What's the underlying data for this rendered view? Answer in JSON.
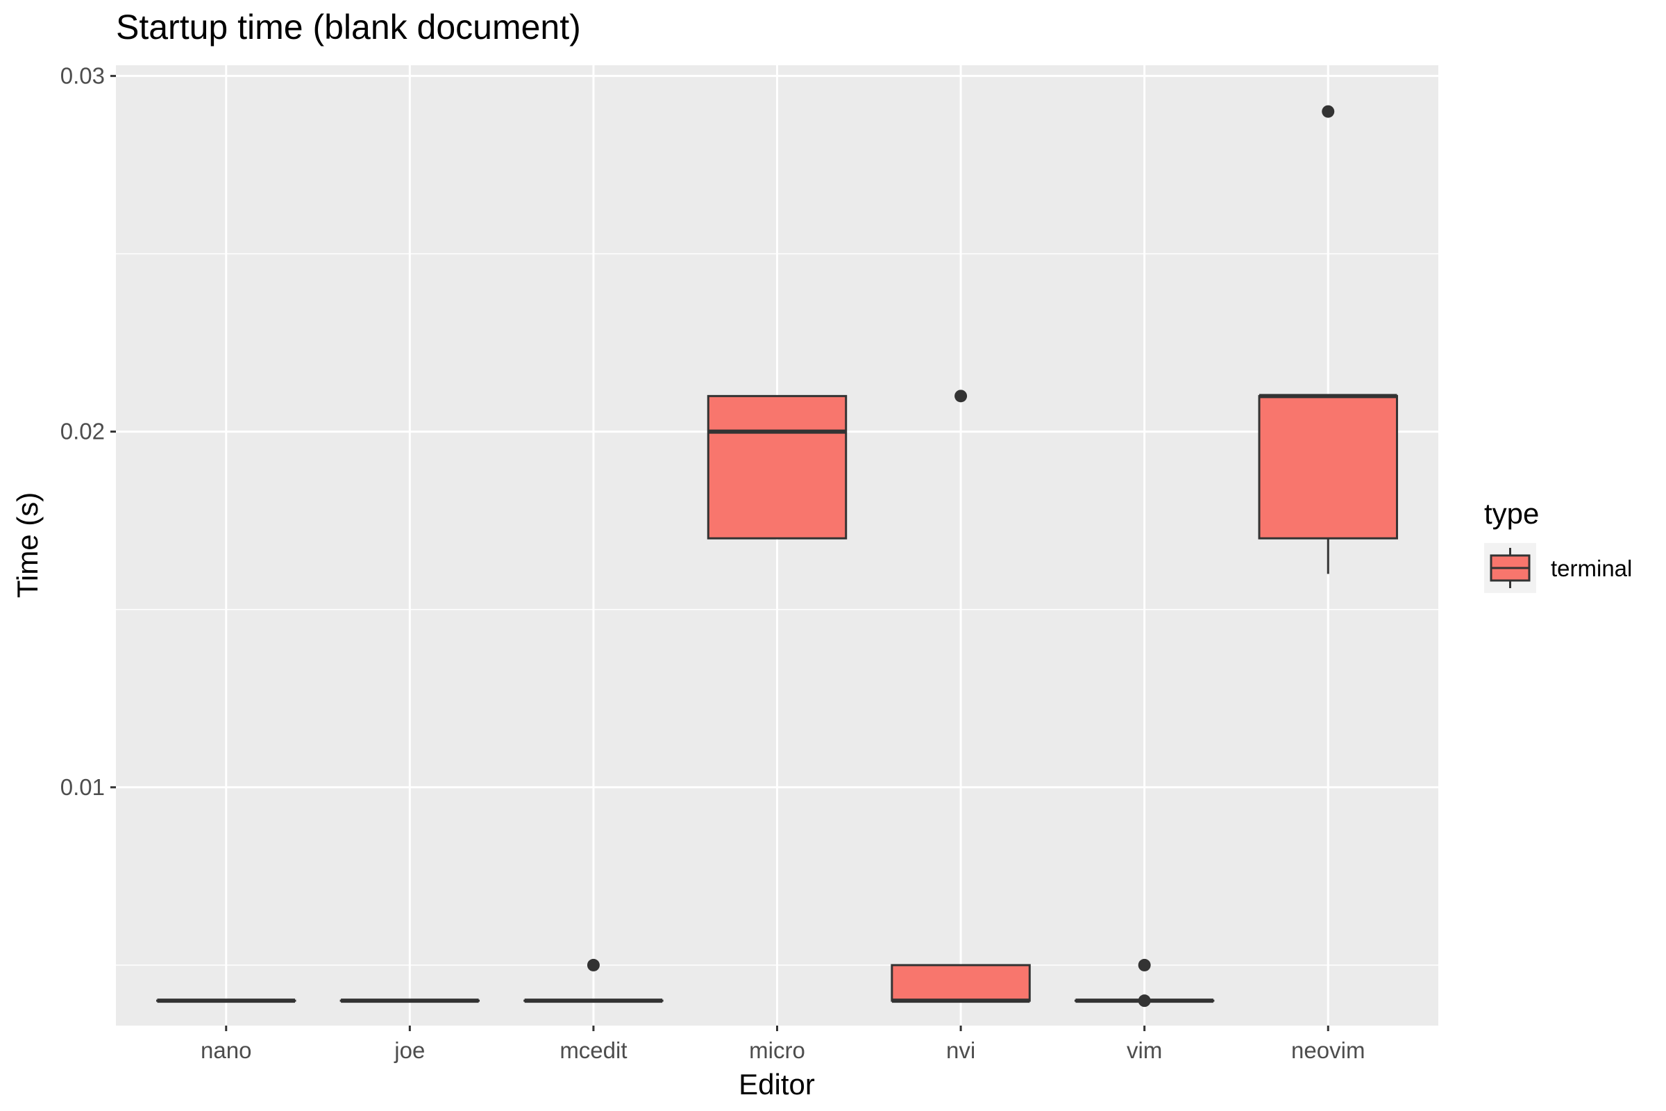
{
  "chart_data": {
    "type": "boxplot",
    "title": "Startup time (blank document)",
    "xlabel": "Editor",
    "ylabel": "Time (s)",
    "categories": [
      "nano",
      "joe",
      "mcedit",
      "micro",
      "nvi",
      "vim",
      "neovim"
    ],
    "ylim": [
      0.0033,
      0.0303
    ],
    "y_ticks": [
      0.01,
      0.02,
      0.03
    ],
    "y_tick_labels": [
      "0.01",
      "0.02",
      "0.03"
    ],
    "y_minor_ticks": [
      0.005,
      0.015,
      0.025
    ],
    "grid": true,
    "legend": {
      "title": "type",
      "position": "right",
      "entries": [
        "terminal"
      ]
    },
    "series": [
      {
        "name": "terminal",
        "boxes": [
          {
            "category": "nano",
            "whisker_low": 0.004,
            "q1": 0.004,
            "median": 0.004,
            "q3": 0.004,
            "whisker_high": 0.004,
            "outliers": []
          },
          {
            "category": "joe",
            "whisker_low": 0.004,
            "q1": 0.004,
            "median": 0.004,
            "q3": 0.004,
            "whisker_high": 0.004,
            "outliers": []
          },
          {
            "category": "mcedit",
            "whisker_low": 0.004,
            "q1": 0.004,
            "median": 0.004,
            "q3": 0.004,
            "whisker_high": 0.004,
            "outliers": [
              0.005
            ]
          },
          {
            "category": "micro",
            "whisker_low": 0.017,
            "q1": 0.017,
            "median": 0.02,
            "q3": 0.021,
            "whisker_high": 0.021,
            "outliers": []
          },
          {
            "category": "nvi",
            "whisker_low": 0.004,
            "q1": 0.004,
            "median": 0.004,
            "q3": 0.005,
            "whisker_high": 0.005,
            "outliers": [
              0.021
            ]
          },
          {
            "category": "vim",
            "whisker_low": 0.004,
            "q1": 0.004,
            "median": 0.004,
            "q3": 0.004,
            "whisker_high": 0.004,
            "outliers": [
              0.005,
              0.004
            ]
          },
          {
            "category": "neovim",
            "whisker_low": 0.016,
            "q1": 0.017,
            "median": 0.021,
            "q3": 0.021,
            "whisker_high": 0.021,
            "outliers": [
              0.029
            ]
          }
        ]
      }
    ],
    "colors": {
      "panel": "#ebebeb",
      "grid": "#ffffff",
      "fill": "#f8766d",
      "line": "#333333"
    }
  }
}
